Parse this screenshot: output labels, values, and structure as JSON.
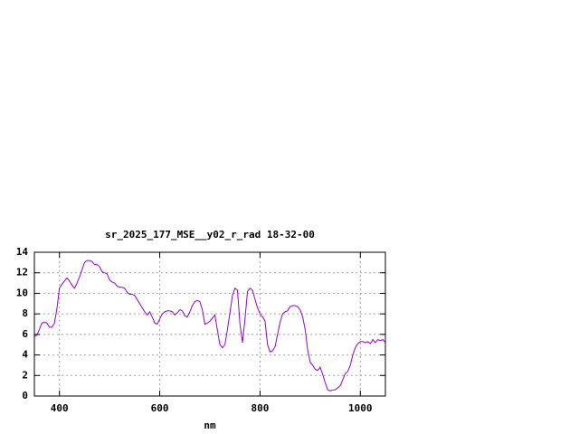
{
  "chart_data": {
    "type": "line",
    "title": "sr_2025_177_MSE__y02_r_rad 18-32-00",
    "x_label": "nm",
    "x": [
      350,
      355,
      360,
      365,
      370,
      375,
      380,
      385,
      390,
      395,
      400,
      405,
      410,
      415,
      420,
      425,
      430,
      435,
      440,
      445,
      450,
      455,
      460,
      465,
      470,
      475,
      480,
      485,
      490,
      495,
      500,
      505,
      510,
      515,
      520,
      525,
      530,
      535,
      540,
      545,
      550,
      555,
      560,
      565,
      570,
      575,
      580,
      585,
      590,
      595,
      600,
      605,
      610,
      615,
      620,
      625,
      630,
      635,
      640,
      645,
      650,
      655,
      660,
      665,
      670,
      675,
      680,
      685,
      690,
      695,
      700,
      705,
      710,
      715,
      720,
      725,
      730,
      735,
      740,
      745,
      750,
      755,
      760,
      765,
      770,
      775,
      780,
      785,
      790,
      795,
      800,
      805,
      810,
      815,
      820,
      825,
      830,
      835,
      840,
      845,
      850,
      855,
      860,
      865,
      870,
      875,
      880,
      885,
      890,
      895,
      900,
      905,
      910,
      915,
      920,
      925,
      930,
      935,
      940,
      945,
      950,
      955,
      960,
      965,
      970,
      975,
      980,
      985,
      990,
      995,
      1000,
      1005,
      1010,
      1015,
      1020,
      1025,
      1030,
      1035,
      1040,
      1045,
      1050
    ],
    "values": [
      5.8,
      5.9,
      6.5,
      7.1,
      7.2,
      7.1,
      6.7,
      6.7,
      7.1,
      8.5,
      10.5,
      10.9,
      11.2,
      11.5,
      11.2,
      10.8,
      10.5,
      11.0,
      11.6,
      12.3,
      13.0,
      13.2,
      13.2,
      13.1,
      12.8,
      12.8,
      12.6,
      12.1,
      12.0,
      11.9,
      11.3,
      11.1,
      11.0,
      10.7,
      10.6,
      10.6,
      10.5,
      10.1,
      9.9,
      9.9,
      9.8,
      9.4,
      9.0,
      8.6,
      8.2,
      7.9,
      8.2,
      7.7,
      7.1,
      7.0,
      7.5,
      8.0,
      8.2,
      8.3,
      8.3,
      8.2,
      7.9,
      8.1,
      8.4,
      8.3,
      7.8,
      7.7,
      8.2,
      8.8,
      9.2,
      9.3,
      9.2,
      8.4,
      7.0,
      7.1,
      7.3,
      7.6,
      7.9,
      6.4,
      5.0,
      4.7,
      5.0,
      6.5,
      8.1,
      9.8,
      10.5,
      10.3,
      7.0,
      5.2,
      7.5,
      10.2,
      10.5,
      10.3,
      9.4,
      8.6,
      8.0,
      7.7,
      7.3,
      5.0,
      4.3,
      4.4,
      4.8,
      6.0,
      7.2,
      8.0,
      8.2,
      8.3,
      8.7,
      8.8,
      8.8,
      8.7,
      8.4,
      7.7,
      6.5,
      4.5,
      3.3,
      3.0,
      2.6,
      2.5,
      2.8,
      2.1,
      1.3,
      0.6,
      0.5,
      0.6,
      0.6,
      0.8,
      1.0,
      1.6,
      2.2,
      2.4,
      3.0,
      4.0,
      4.7,
      5.1,
      5.3,
      5.3,
      5.2,
      5.3,
      5.1,
      5.5,
      5.2,
      5.5,
      5.4,
      5.5,
      5.2
    ],
    "color": "#9400d3",
    "xlim": [
      350,
      1050
    ],
    "ylim": [
      0,
      14
    ],
    "xticks": [
      400,
      600,
      800,
      1000
    ],
    "yticks": [
      0,
      2,
      4,
      6,
      8,
      10,
      12,
      14
    ],
    "grid": true
  }
}
